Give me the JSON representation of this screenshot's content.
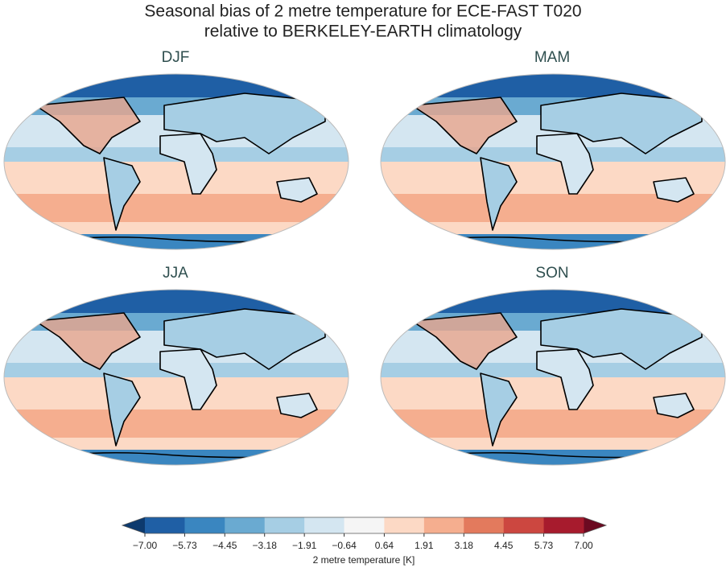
{
  "title": [
    "Seasonal bias of 2 metre temperature for ECE-FAST T020",
    "relative to BERKELEY-EARTH climatology"
  ],
  "panels": [
    {
      "title": "DJF"
    },
    {
      "title": "MAM"
    },
    {
      "title": "JJA"
    },
    {
      "title": "SON"
    }
  ],
  "colorbar": {
    "label": "2 metre temperature [K]",
    "ticks": [
      {
        "value": -7,
        "label": "−7.00"
      },
      {
        "value": -5.73,
        "label": "−5.73"
      },
      {
        "value": -4.45,
        "label": "−4.45"
      },
      {
        "value": -3.18,
        "label": "−3.18"
      },
      {
        "value": -1.91,
        "label": "−1.91"
      },
      {
        "value": -0.64,
        "label": "−0.64"
      },
      {
        "value": 0.64,
        "label": "0.64"
      },
      {
        "value": 1.91,
        "label": "1.91"
      },
      {
        "value": 3.18,
        "label": "3.18"
      },
      {
        "value": 4.45,
        "label": "4.45"
      },
      {
        "value": 5.73,
        "label": "5.73"
      },
      {
        "value": 7,
        "label": "7.00"
      }
    ],
    "colors": [
      "#0d3a6e",
      "#1f5fa5",
      "#3a86c0",
      "#6aaad1",
      "#a6cee4",
      "#d4e6f1",
      "#f5f5f5",
      "#fcd9c5",
      "#f5ae8f",
      "#e37a5d",
      "#cc4740",
      "#a71b2d",
      "#6b0a21"
    ]
  }
}
